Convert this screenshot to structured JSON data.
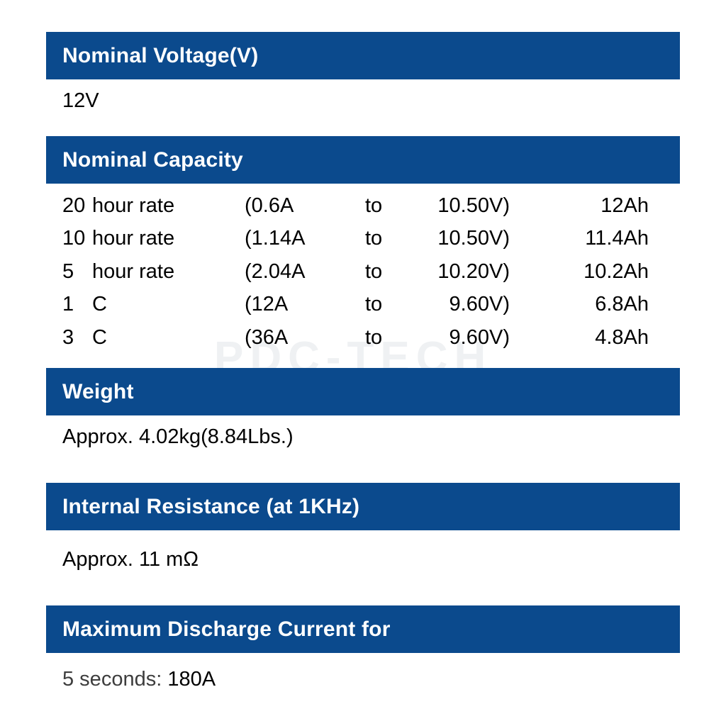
{
  "colors": {
    "header_bg": "#0b4a8d",
    "header_text": "#ffffff",
    "body_text": "#000000",
    "muted_text": "#3d3d3d",
    "watermark_text": "#eff1f3"
  },
  "watermark": "PDC-TECH",
  "sections": {
    "nominal_voltage": {
      "title": "Nominal Voltage(V)",
      "value": "12V"
    },
    "nominal_capacity": {
      "title": "Nominal Capacity",
      "rows": [
        {
          "qty": "20",
          "unit": "hour rate",
          "current": "(0.6A",
          "to": "to",
          "voltage": "10.50V)",
          "capacity": "12Ah"
        },
        {
          "qty": "10",
          "unit": "hour rate",
          "current": "(1.14A",
          "to": "to",
          "voltage": "10.50V)",
          "capacity": "11.4Ah"
        },
        {
          "qty": "5",
          "unit": "hour rate",
          "current": "(2.04A",
          "to": "to",
          "voltage": "10.20V)",
          "capacity": "10.2Ah"
        },
        {
          "qty": "1",
          "unit": "C",
          "current": "(12A",
          "to": "to",
          "voltage": "9.60V)",
          "capacity": "6.8Ah"
        },
        {
          "qty": "3",
          "unit": "C",
          "current": "(36A",
          "to": "to",
          "voltage": "9.60V)",
          "capacity": "4.8Ah"
        }
      ]
    },
    "weight": {
      "title": "Weight",
      "value": "Approx. 4.02kg(8.84Lbs.)"
    },
    "internal_resistance": {
      "title": "Internal Resistance (at 1KHz)",
      "value": "Approx. 11 mΩ"
    },
    "max_discharge": {
      "title": "Maximum Discharge Current for",
      "label": "5 seconds:",
      "value": "180A"
    }
  }
}
